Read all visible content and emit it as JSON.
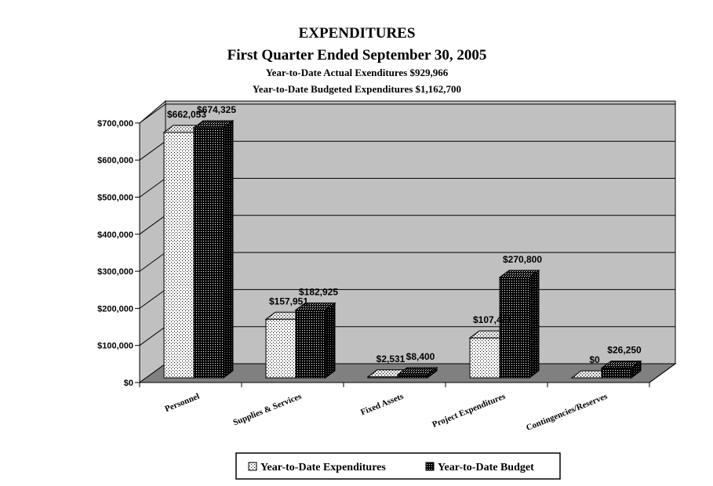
{
  "chart_data": {
    "type": "bar",
    "title": "EXPENDITURES",
    "subtitle": "First Quarter Ended September 30, 2005",
    "subtitle_lines": [
      "Year-to-Date Actual Exenditures $929,966",
      "Year-to-Date Budgeted Expenditures $1,162,700"
    ],
    "categories": [
      "Personnel",
      "Supplies & Services",
      "Fixed Assets",
      "Project Expenditures",
      "Contingencies/Reserves"
    ],
    "series": [
      {
        "name": "Year-to-Date Expenditures",
        "values": [
          662053,
          157951,
          2531,
          107431,
          0
        ],
        "labels": [
          "$662,053",
          "$157,951",
          "$2,531",
          "$107,431",
          "$0"
        ]
      },
      {
        "name": "Year-to-Date Budget",
        "values": [
          674325,
          182925,
          8400,
          270800,
          26250
        ],
        "labels": [
          "$674,325",
          "$182,925",
          "$8,400",
          "$270,800",
          "$26,250"
        ]
      }
    ],
    "ylim": [
      0,
      700000
    ],
    "yticks": [
      0,
      100000,
      200000,
      300000,
      400000,
      500000,
      600000,
      700000
    ],
    "ytick_labels": [
      "$0",
      "$100,000",
      "$200,000",
      "$300,000",
      "$400,000",
      "$500,000",
      "$600,000",
      "$700,000"
    ],
    "grid": true,
    "legend": "bottom",
    "colors": {
      "wall": "#c0c0c0",
      "floor": "#808080",
      "series1_fill": "#ffffff",
      "series2_fill": "#000000"
    }
  }
}
